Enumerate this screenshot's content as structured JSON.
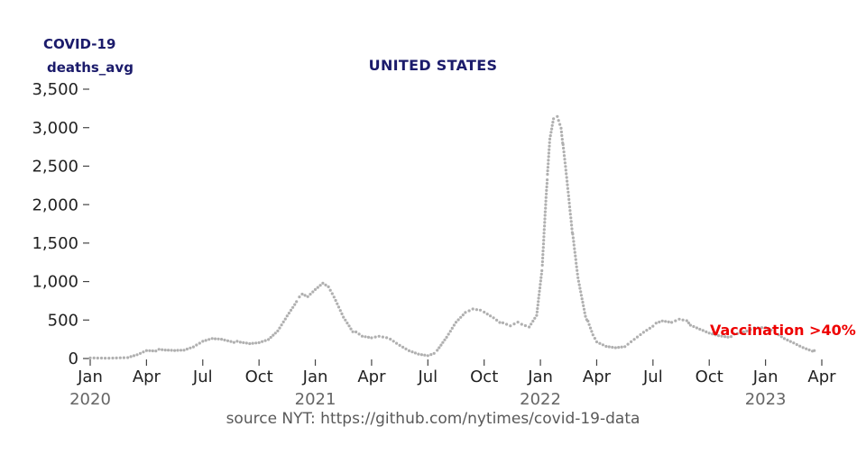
{
  "header": {
    "label_line1": "COVID-19",
    "label_line2": "deaths_avg",
    "title": "UNITED STATES"
  },
  "annotation": {
    "text": "Vaccination >40%",
    "color": "#ee0000"
  },
  "footer": {
    "source": "source NYT: https://github.com/nytimes/covid-19-data"
  },
  "colors": {
    "navy": "#1b1b6b",
    "red": "#ee0000",
    "dots": "#b0b0b0",
    "tick_mark": "#444444",
    "tick_text": "#222222",
    "year_text": "#666666",
    "source_text": "#595959"
  },
  "chart_data": {
    "type": "scatter",
    "title": "UNITED STATES",
    "ylabel": "deaths_avg",
    "x_unit": "months since Jan 2020",
    "ylim": [
      0,
      3500
    ],
    "xlim_months": [
      0,
      39
    ],
    "grid": false,
    "y_ticks": [
      {
        "value": 0,
        "label": "0"
      },
      {
        "value": 500,
        "label": "500"
      },
      {
        "value": 1000,
        "label": "1,000"
      },
      {
        "value": 1500,
        "label": "1,500"
      },
      {
        "value": 2000,
        "label": "2,000"
      },
      {
        "value": 2500,
        "label": "2,500"
      },
      {
        "value": 3000,
        "label": "3,000"
      },
      {
        "value": 3500,
        "label": "3,500"
      }
    ],
    "x_ticks": [
      {
        "m": 0,
        "label": "Jan"
      },
      {
        "m": 3,
        "label": "Apr"
      },
      {
        "m": 6,
        "label": "Jul"
      },
      {
        "m": 9,
        "label": "Oct"
      },
      {
        "m": 12,
        "label": "Jan"
      },
      {
        "m": 15,
        "label": "Apr"
      },
      {
        "m": 18,
        "label": "Jul"
      },
      {
        "m": 21,
        "label": "Oct"
      },
      {
        "m": 24,
        "label": "Jan"
      },
      {
        "m": 27,
        "label": "Apr"
      },
      {
        "m": 30,
        "label": "Jul"
      },
      {
        "m": 33,
        "label": "Oct"
      },
      {
        "m": 36,
        "label": "Jan"
      },
      {
        "m": 39,
        "label": "Apr"
      }
    ],
    "year_ticks": [
      {
        "m": 0,
        "label": "2020"
      },
      {
        "m": 12,
        "label": "2021"
      },
      {
        "m": 24,
        "label": "2022"
      },
      {
        "m": 36,
        "label": "2023"
      }
    ],
    "points": [
      [
        0,
        0
      ],
      [
        1,
        2
      ],
      [
        2,
        15
      ],
      [
        2.5,
        55
      ],
      [
        3,
        112
      ],
      [
        3.5,
        110
      ],
      [
        4,
        100
      ],
      [
        4.5,
        97
      ],
      [
        5,
        105
      ],
      [
        5.5,
        150
      ],
      [
        6,
        225
      ],
      [
        6.5,
        265
      ],
      [
        7,
        258
      ],
      [
        7.5,
        232
      ],
      [
        8,
        200
      ],
      [
        8.5,
        185
      ],
      [
        9,
        200
      ],
      [
        9.5,
        245
      ],
      [
        10,
        360
      ],
      [
        10.5,
        560
      ],
      [
        11,
        750
      ],
      [
        11.3,
        825
      ],
      [
        11.6,
        795
      ],
      [
        12,
        890
      ],
      [
        12.4,
        975
      ],
      [
        12.7,
        930
      ],
      [
        13,
        800
      ],
      [
        13.5,
        545
      ],
      [
        14,
        360
      ],
      [
        14.5,
        280
      ],
      [
        15,
        262
      ],
      [
        15.4,
        285
      ],
      [
        15.8,
        268
      ],
      [
        16,
        250
      ],
      [
        16.5,
        172
      ],
      [
        17,
        105
      ],
      [
        17.5,
        65
      ],
      [
        18,
        48
      ],
      [
        18.5,
        95
      ],
      [
        19,
        270
      ],
      [
        19.5,
        470
      ],
      [
        20,
        600
      ],
      [
        20.4,
        648
      ],
      [
        20.8,
        635
      ],
      [
        21,
        610
      ],
      [
        21.5,
        540
      ],
      [
        22,
        452
      ],
      [
        22.4,
        415
      ],
      [
        22.8,
        465
      ],
      [
        23,
        438
      ],
      [
        23.4,
        405
      ],
      [
        23.8,
        560
      ],
      [
        24.1,
        1200
      ],
      [
        24.3,
        2100
      ],
      [
        24.5,
        2850
      ],
      [
        24.7,
        3120
      ],
      [
        24.9,
        3150
      ],
      [
        25.1,
        3000
      ],
      [
        25.4,
        2350
      ],
      [
        25.7,
        1650
      ],
      [
        26,
        1050
      ],
      [
        26.4,
        560
      ],
      [
        26.8,
        300
      ],
      [
        27,
        210
      ],
      [
        27.5,
        155
      ],
      [
        28,
        140
      ],
      [
        28.5,
        158
      ],
      [
        29,
        255
      ],
      [
        29.5,
        350
      ],
      [
        30,
        432
      ],
      [
        30.5,
        478
      ],
      [
        31,
        462
      ],
      [
        31.4,
        506
      ],
      [
        31.8,
        488
      ],
      [
        32,
        432
      ],
      [
        32.5,
        382
      ],
      [
        33,
        335
      ],
      [
        33.5,
        305
      ],
      [
        34,
        290
      ],
      [
        34.5,
        312
      ],
      [
        35,
        348
      ],
      [
        35.4,
        392
      ],
      [
        36,
        400
      ],
      [
        36.3,
        368
      ],
      [
        36.7,
        308
      ],
      [
        37,
        262
      ],
      [
        37.5,
        208
      ],
      [
        38,
        150
      ],
      [
        38.5,
        108
      ],
      [
        38.6,
        90
      ]
    ]
  }
}
